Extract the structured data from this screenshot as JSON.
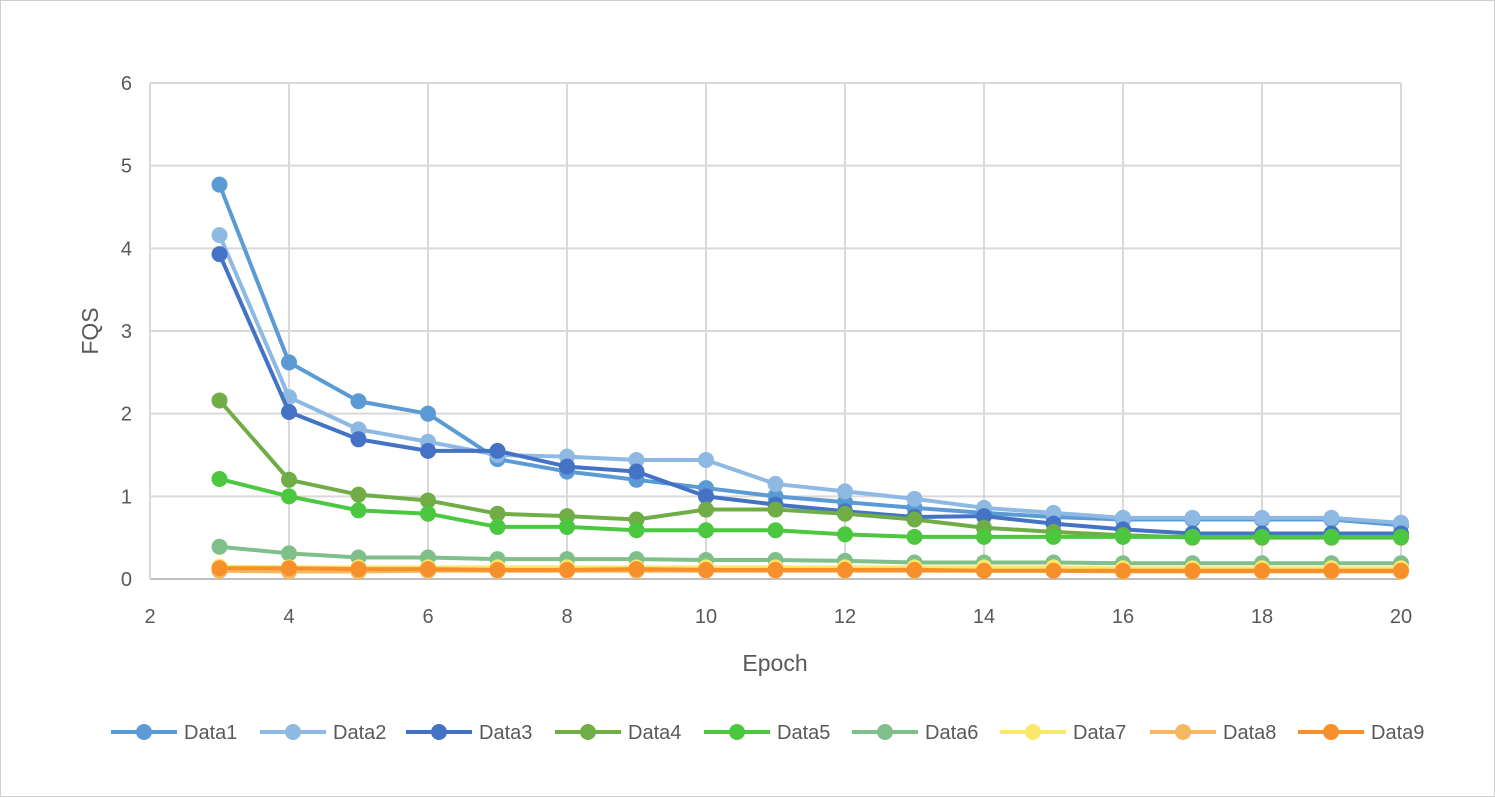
{
  "chart_data": {
    "type": "line",
    "title": "",
    "xlabel": "Epoch",
    "ylabel": "FQS",
    "xlim": [
      2,
      20
    ],
    "ylim": [
      0,
      6
    ],
    "xticks": [
      2,
      4,
      6,
      8,
      10,
      12,
      14,
      16,
      18,
      20
    ],
    "yticks": [
      0,
      1,
      2,
      3,
      4,
      5,
      6
    ],
    "grid": true,
    "legend_position": "bottom",
    "x": [
      3,
      4,
      5,
      6,
      7,
      8,
      9,
      10,
      11,
      12,
      13,
      14,
      15,
      16,
      17,
      18,
      19,
      20
    ],
    "series": [
      {
        "name": "Data1",
        "color": "#5b9bd5",
        "values": [
          4.77,
          2.62,
          2.15,
          2.0,
          1.45,
          1.3,
          1.2,
          1.1,
          1.0,
          0.93,
          0.86,
          0.8,
          0.75,
          0.72,
          0.72,
          0.72,
          0.72,
          0.65
        ]
      },
      {
        "name": "Data2",
        "color": "#8eb9e3",
        "values": [
          4.16,
          2.2,
          1.81,
          1.66,
          1.5,
          1.48,
          1.44,
          1.44,
          1.15,
          1.06,
          0.97,
          0.86,
          0.8,
          0.74,
          0.74,
          0.74,
          0.74,
          0.68
        ]
      },
      {
        "name": "Data3",
        "color": "#4472c4",
        "values": [
          3.93,
          2.02,
          1.69,
          1.55,
          1.55,
          1.36,
          1.3,
          1.0,
          0.9,
          0.82,
          0.75,
          0.76,
          0.67,
          0.6,
          0.55,
          0.55,
          0.55,
          0.55
        ]
      },
      {
        "name": "Data4",
        "color": "#70ad47",
        "values": [
          2.16,
          1.2,
          1.02,
          0.95,
          0.79,
          0.76,
          0.72,
          0.84,
          0.84,
          0.79,
          0.72,
          0.62,
          0.57,
          0.53,
          0.5,
          0.5,
          0.5,
          0.5
        ]
      },
      {
        "name": "Data5",
        "color": "#4bc83f",
        "values": [
          1.21,
          1.0,
          0.83,
          0.79,
          0.63,
          0.63,
          0.59,
          0.59,
          0.59,
          0.54,
          0.51,
          0.51,
          0.51,
          0.51,
          0.51,
          0.51,
          0.51,
          0.51
        ]
      },
      {
        "name": "Data6",
        "color": "#7fbf8a",
        "values": [
          0.39,
          0.31,
          0.26,
          0.26,
          0.24,
          0.24,
          0.24,
          0.23,
          0.23,
          0.22,
          0.2,
          0.2,
          0.2,
          0.19,
          0.19,
          0.19,
          0.19,
          0.19
        ]
      },
      {
        "name": "Data7",
        "color": "#fbe86a",
        "values": [
          0.15,
          0.14,
          0.14,
          0.14,
          0.14,
          0.14,
          0.14,
          0.14,
          0.14,
          0.14,
          0.14,
          0.14,
          0.14,
          0.13,
          0.13,
          0.13,
          0.13,
          0.13
        ]
      },
      {
        "name": "Data8",
        "color": "#f4b960",
        "values": [
          0.1,
          0.09,
          0.09,
          0.1,
          0.1,
          0.1,
          0.1,
          0.1,
          0.1,
          0.1,
          0.1,
          0.1,
          0.1,
          0.09,
          0.09,
          0.09,
          0.09,
          0.09
        ]
      },
      {
        "name": "Data9",
        "color": "#f7902a",
        "values": [
          0.13,
          0.13,
          0.12,
          0.12,
          0.11,
          0.11,
          0.12,
          0.11,
          0.11,
          0.11,
          0.11,
          0.1,
          0.1,
          0.1,
          0.1,
          0.1,
          0.1,
          0.1
        ]
      }
    ]
  }
}
